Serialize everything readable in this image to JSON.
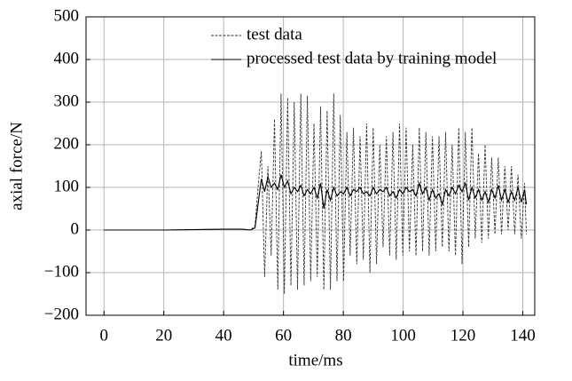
{
  "chart_data": {
    "type": "line",
    "xlabel": "time/ms",
    "ylabel": "axial force/N",
    "x": [
      0,
      20,
      40,
      46,
      49,
      50.5,
      51.5,
      52.6,
      53.7,
      54.8,
      55.9,
      57,
      58.1,
      59.2,
      60.3,
      61.4,
      62.5,
      63.6,
      64.7,
      65.8,
      66.9,
      68,
      69.1,
      70.2,
      71.3,
      72.4,
      73.5,
      74.6,
      75.7,
      76.8,
      77.9,
      79,
      80.1,
      81.2,
      82.3,
      83.4,
      84.5,
      85.6,
      86.7,
      87.8,
      88.9,
      90,
      91.1,
      92.2,
      93.3,
      94.4,
      95.5,
      96.6,
      97.7,
      98.8,
      99.9,
      101,
      102.1,
      103.2,
      104.3,
      105.4,
      106.5,
      107.6,
      108.7,
      109.8,
      110.9,
      112,
      113.1,
      114.2,
      115.3,
      116.4,
      117.5,
      118.6,
      119.7,
      120.8,
      121.9,
      123,
      124.1,
      125.2,
      126.3,
      127.4,
      128.5,
      129.6,
      130.7,
      131.8,
      132.9,
      134,
      135.1,
      136.2,
      137.3,
      138.4,
      139.5,
      140.6,
      141.2
    ],
    "series": [
      {
        "name": "test data",
        "color": "#333333",
        "style": "dashed",
        "values": [
          0,
          0,
          2,
          2,
          0,
          10,
          100,
          185,
          -110,
          150,
          -60,
          260,
          -140,
          320,
          -150,
          310,
          -130,
          300,
          -140,
          320,
          -130,
          315,
          -120,
          250,
          -110,
          290,
          -140,
          280,
          -140,
          320,
          -120,
          270,
          -120,
          230,
          -60,
          240,
          -80,
          220,
          -70,
          250,
          -100,
          240,
          -80,
          200,
          -40,
          220,
          -60,
          230,
          -70,
          250,
          -60,
          240,
          -50,
          200,
          -60,
          240,
          -50,
          230,
          -60,
          220,
          -50,
          220,
          -40,
          230,
          -50,
          200,
          -60,
          240,
          -80,
          230,
          -40,
          240,
          -20,
          180,
          -30,
          200,
          -20,
          170,
          -10,
          170,
          -10,
          150,
          0,
          150,
          -10,
          130,
          -20,
          110,
          -10
        ]
      },
      {
        "name": "processed test data by training model",
        "color": "#000000",
        "style": "solid",
        "values": [
          0,
          0,
          2,
          2,
          0,
          5,
          60,
          120,
          90,
          125,
          100,
          110,
          95,
          130,
          100,
          115,
          85,
          100,
          90,
          105,
          80,
          95,
          85,
          100,
          75,
          110,
          50,
          95,
          70,
          100,
          80,
          90,
          85,
          100,
          80,
          95,
          90,
          100,
          85,
          90,
          80,
          100,
          85,
          95,
          90,
          100,
          80,
          90,
          75,
          95,
          85,
          100,
          90,
          95,
          80,
          110,
          85,
          100,
          70,
          95,
          75,
          85,
          60,
          95,
          80,
          100,
          85,
          105,
          90,
          110,
          70,
          100,
          75,
          95,
          70,
          90,
          65,
          95,
          75,
          105,
          70,
          95,
          65,
          90,
          70,
          100,
          65,
          95,
          60
        ]
      }
    ],
    "xlim": [
      -6,
      144
    ],
    "xticks": [
      0,
      20,
      40,
      60,
      80,
      100,
      120,
      140
    ],
    "ylim": [
      -200,
      500
    ],
    "yticks": [
      {
        "value": -200,
        "label": "−200"
      },
      {
        "value": -100,
        "label": "−100"
      },
      0,
      100,
      200,
      300,
      400,
      500
    ],
    "grid": true,
    "legend": "top"
  }
}
